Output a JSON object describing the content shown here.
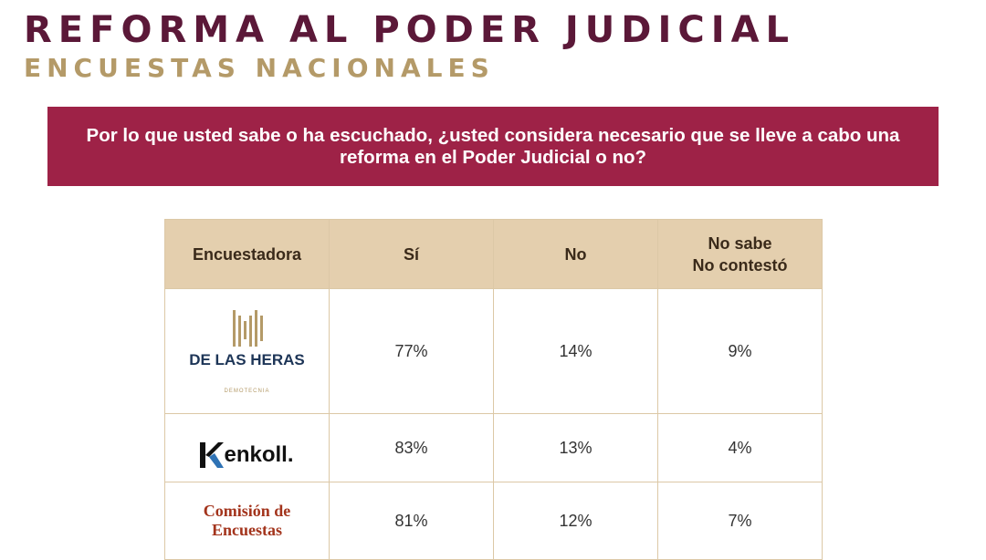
{
  "header": {
    "title": "REFORMA AL PODER JUDICIAL",
    "subtitle": "ENCUESTAS NACIONALES"
  },
  "question": "Por lo que usted sabe o ha escuchado, ¿usted considera necesario que se lleve a cabo una reforma en el Poder Judicial o no?",
  "table": {
    "header": [
      "Encuestadora",
      "Sí",
      "No",
      "No sabe\nNo contestó"
    ],
    "rows": [
      {
        "pollster": {
          "name": "DE LAS HERAS",
          "tagline": "DEMOTECNIA"
        },
        "values": [
          "77%",
          "14%",
          "9%"
        ]
      },
      {
        "pollster": {
          "name": "enkoll."
        },
        "values": [
          "83%",
          "13%",
          "4%"
        ]
      },
      {
        "pollster": {
          "name": "Comisión de\nEncuestas"
        },
        "values": [
          "81%",
          "12%",
          "7%"
        ]
      }
    ]
  }
}
